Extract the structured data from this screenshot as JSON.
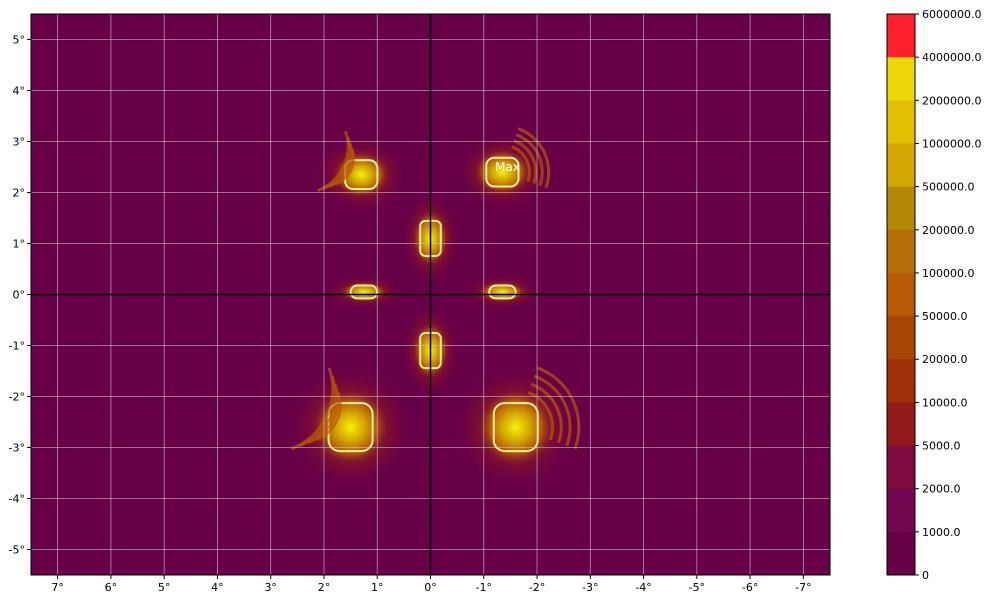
{
  "chart_data": {
    "type": "heatmap",
    "title": "",
    "xlabel": "",
    "ylabel": "",
    "xlim": [
      7.5,
      -7.5
    ],
    "ylim": [
      -5.5,
      5.5
    ],
    "grid": true,
    "x_ticks": [
      {
        "value": 7,
        "label": "7°"
      },
      {
        "value": 6,
        "label": "6°"
      },
      {
        "value": 5,
        "label": "5°"
      },
      {
        "value": 4,
        "label": "4°"
      },
      {
        "value": 3,
        "label": "3°"
      },
      {
        "value": 2,
        "label": "2°"
      },
      {
        "value": 1,
        "label": "1°"
      },
      {
        "value": 0,
        "label": "0°"
      },
      {
        "value": -1,
        "label": "-1°"
      },
      {
        "value": -2,
        "label": "-2°"
      },
      {
        "value": -3,
        "label": "-3°"
      },
      {
        "value": -4,
        "label": "-4°"
      },
      {
        "value": -5,
        "label": "-5°"
      },
      {
        "value": -6,
        "label": "-6°"
      },
      {
        "value": -7,
        "label": "-7°"
      }
    ],
    "y_ticks": [
      {
        "value": 5,
        "label": "5°"
      },
      {
        "value": 4,
        "label": "4°"
      },
      {
        "value": 3,
        "label": "3°"
      },
      {
        "value": 2,
        "label": "2°"
      },
      {
        "value": 1,
        "label": "1°"
      },
      {
        "value": 0,
        "label": "0°"
      },
      {
        "value": -1,
        "label": "-1°"
      },
      {
        "value": -2,
        "label": "-2°"
      },
      {
        "value": -3,
        "label": "-3°"
      },
      {
        "value": -4,
        "label": "-4°"
      },
      {
        "value": -5,
        "label": "-5°"
      }
    ],
    "colorbar": {
      "levels": [
        {
          "label": "6000000.0",
          "color": "#ff1f2d"
        },
        {
          "label": "4000000.0",
          "color": "#f5f20a"
        },
        {
          "label": "2000000.0",
          "color": "#ecd707"
        },
        {
          "label": "1000000.0",
          "color": "#e2c004"
        },
        {
          "label": "500000.0",
          "color": "#d2a703"
        },
        {
          "label": "200000.0",
          "color": "#b28805"
        },
        {
          "label": "100000.0",
          "color": "#b47006"
        },
        {
          "label": "50000.0",
          "color": "#b65a04"
        },
        {
          "label": "20000.0",
          "color": "#a54702"
        },
        {
          "label": "10000.0",
          "color": "#9e3008"
        },
        {
          "label": "5000.0",
          "color": "#921a1a"
        },
        {
          "label": "2000.0",
          "color": "#7e0b3d"
        },
        {
          "label": "1000.0",
          "color": "#730650"
        },
        {
          "label": "0",
          "color": "#680048"
        }
      ]
    },
    "hotspots": [
      {
        "x": 1.3,
        "y": 2.35,
        "level": 2000000,
        "kind": "arc-left"
      },
      {
        "x": -1.35,
        "y": 2.4,
        "level": 4000000,
        "kind": "arc-right"
      },
      {
        "x": 0.0,
        "y": 1.1,
        "level": 2000000,
        "kind": "core"
      },
      {
        "x": 1.25,
        "y": 0.05,
        "level": 1000000,
        "kind": "bar"
      },
      {
        "x": -1.35,
        "y": 0.05,
        "level": 1000000,
        "kind": "bar"
      },
      {
        "x": 0.0,
        "y": -1.1,
        "level": 2000000,
        "kind": "core"
      },
      {
        "x": 1.5,
        "y": -2.6,
        "level": 1000000,
        "kind": "fringe-left"
      },
      {
        "x": -1.6,
        "y": -2.6,
        "level": 1000000,
        "kind": "fringe-right"
      }
    ],
    "annotation": {
      "text": "Max",
      "x": -1.4,
      "y": 2.5
    }
  }
}
